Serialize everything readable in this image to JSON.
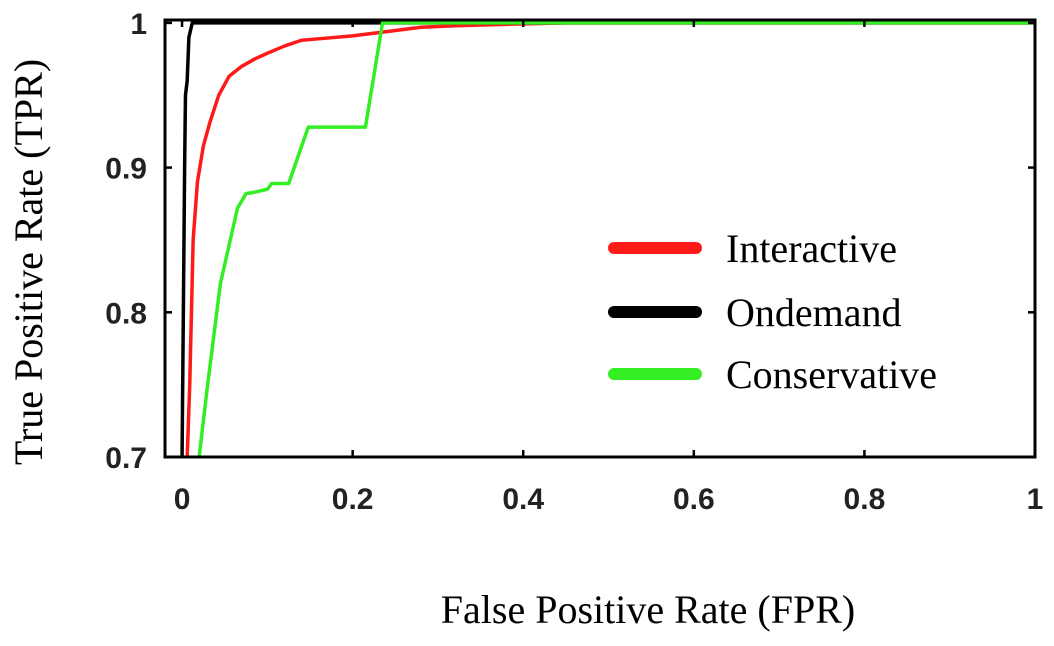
{
  "chart_data": {
    "type": "line",
    "xlabel": "False Positive Rate (FPR)",
    "ylabel": "True Positive Rate (TPR)",
    "xlim": [
      -0.02,
      1
    ],
    "ylim": [
      0.7,
      1.002
    ],
    "xticks": [
      0,
      0.2,
      0.4,
      0.6,
      0.8,
      1
    ],
    "xtick_labels": [
      "0",
      "0.2",
      "0.4",
      "0.6",
      "0.8",
      "1"
    ],
    "yticks": [
      0.7,
      0.8,
      0.9,
      1
    ],
    "ytick_labels": [
      "0.7",
      "0.8",
      "0.9",
      "1"
    ],
    "grid": false,
    "legend_position": "center-right",
    "series": [
      {
        "name": "Interactive",
        "color": "#ff1a1a",
        "x": [
          0.006,
          0.009,
          0.013,
          0.018,
          0.025,
          0.033,
          0.043,
          0.055,
          0.07,
          0.085,
          0.1,
          0.12,
          0.14,
          0.16,
          0.2,
          0.24,
          0.28,
          0.32,
          0.38,
          0.45,
          0.6,
          1.0
        ],
        "y": [
          0.7,
          0.75,
          0.85,
          0.89,
          0.915,
          0.932,
          0.95,
          0.963,
          0.97,
          0.975,
          0.979,
          0.984,
          0.988,
          0.989,
          0.991,
          0.994,
          0.997,
          0.998,
          0.999,
          1.0,
          1.0,
          1.0
        ]
      },
      {
        "name": "Ondemand",
        "color": "#000000",
        "x": [
          0.0,
          0.003,
          0.004,
          0.006,
          0.008,
          0.01,
          0.012,
          0.015,
          0.2,
          1.0
        ],
        "y": [
          0.7,
          0.9,
          0.95,
          0.96,
          0.99,
          0.995,
          1.0,
          1.0,
          1.0,
          1.0
        ]
      },
      {
        "name": "Conservative",
        "color": "#33ee22",
        "x": [
          0.02,
          0.03,
          0.045,
          0.065,
          0.075,
          0.085,
          0.1,
          0.105,
          0.12,
          0.125,
          0.148,
          0.215,
          0.235,
          0.238,
          0.3,
          0.5,
          0.8,
          1.0
        ],
        "y": [
          0.7,
          0.75,
          0.82,
          0.872,
          0.882,
          0.883,
          0.885,
          0.889,
          0.889,
          0.889,
          0.928,
          0.928,
          1.0,
          1.0,
          1.0,
          1.0,
          1.0,
          1.0
        ]
      }
    ]
  }
}
